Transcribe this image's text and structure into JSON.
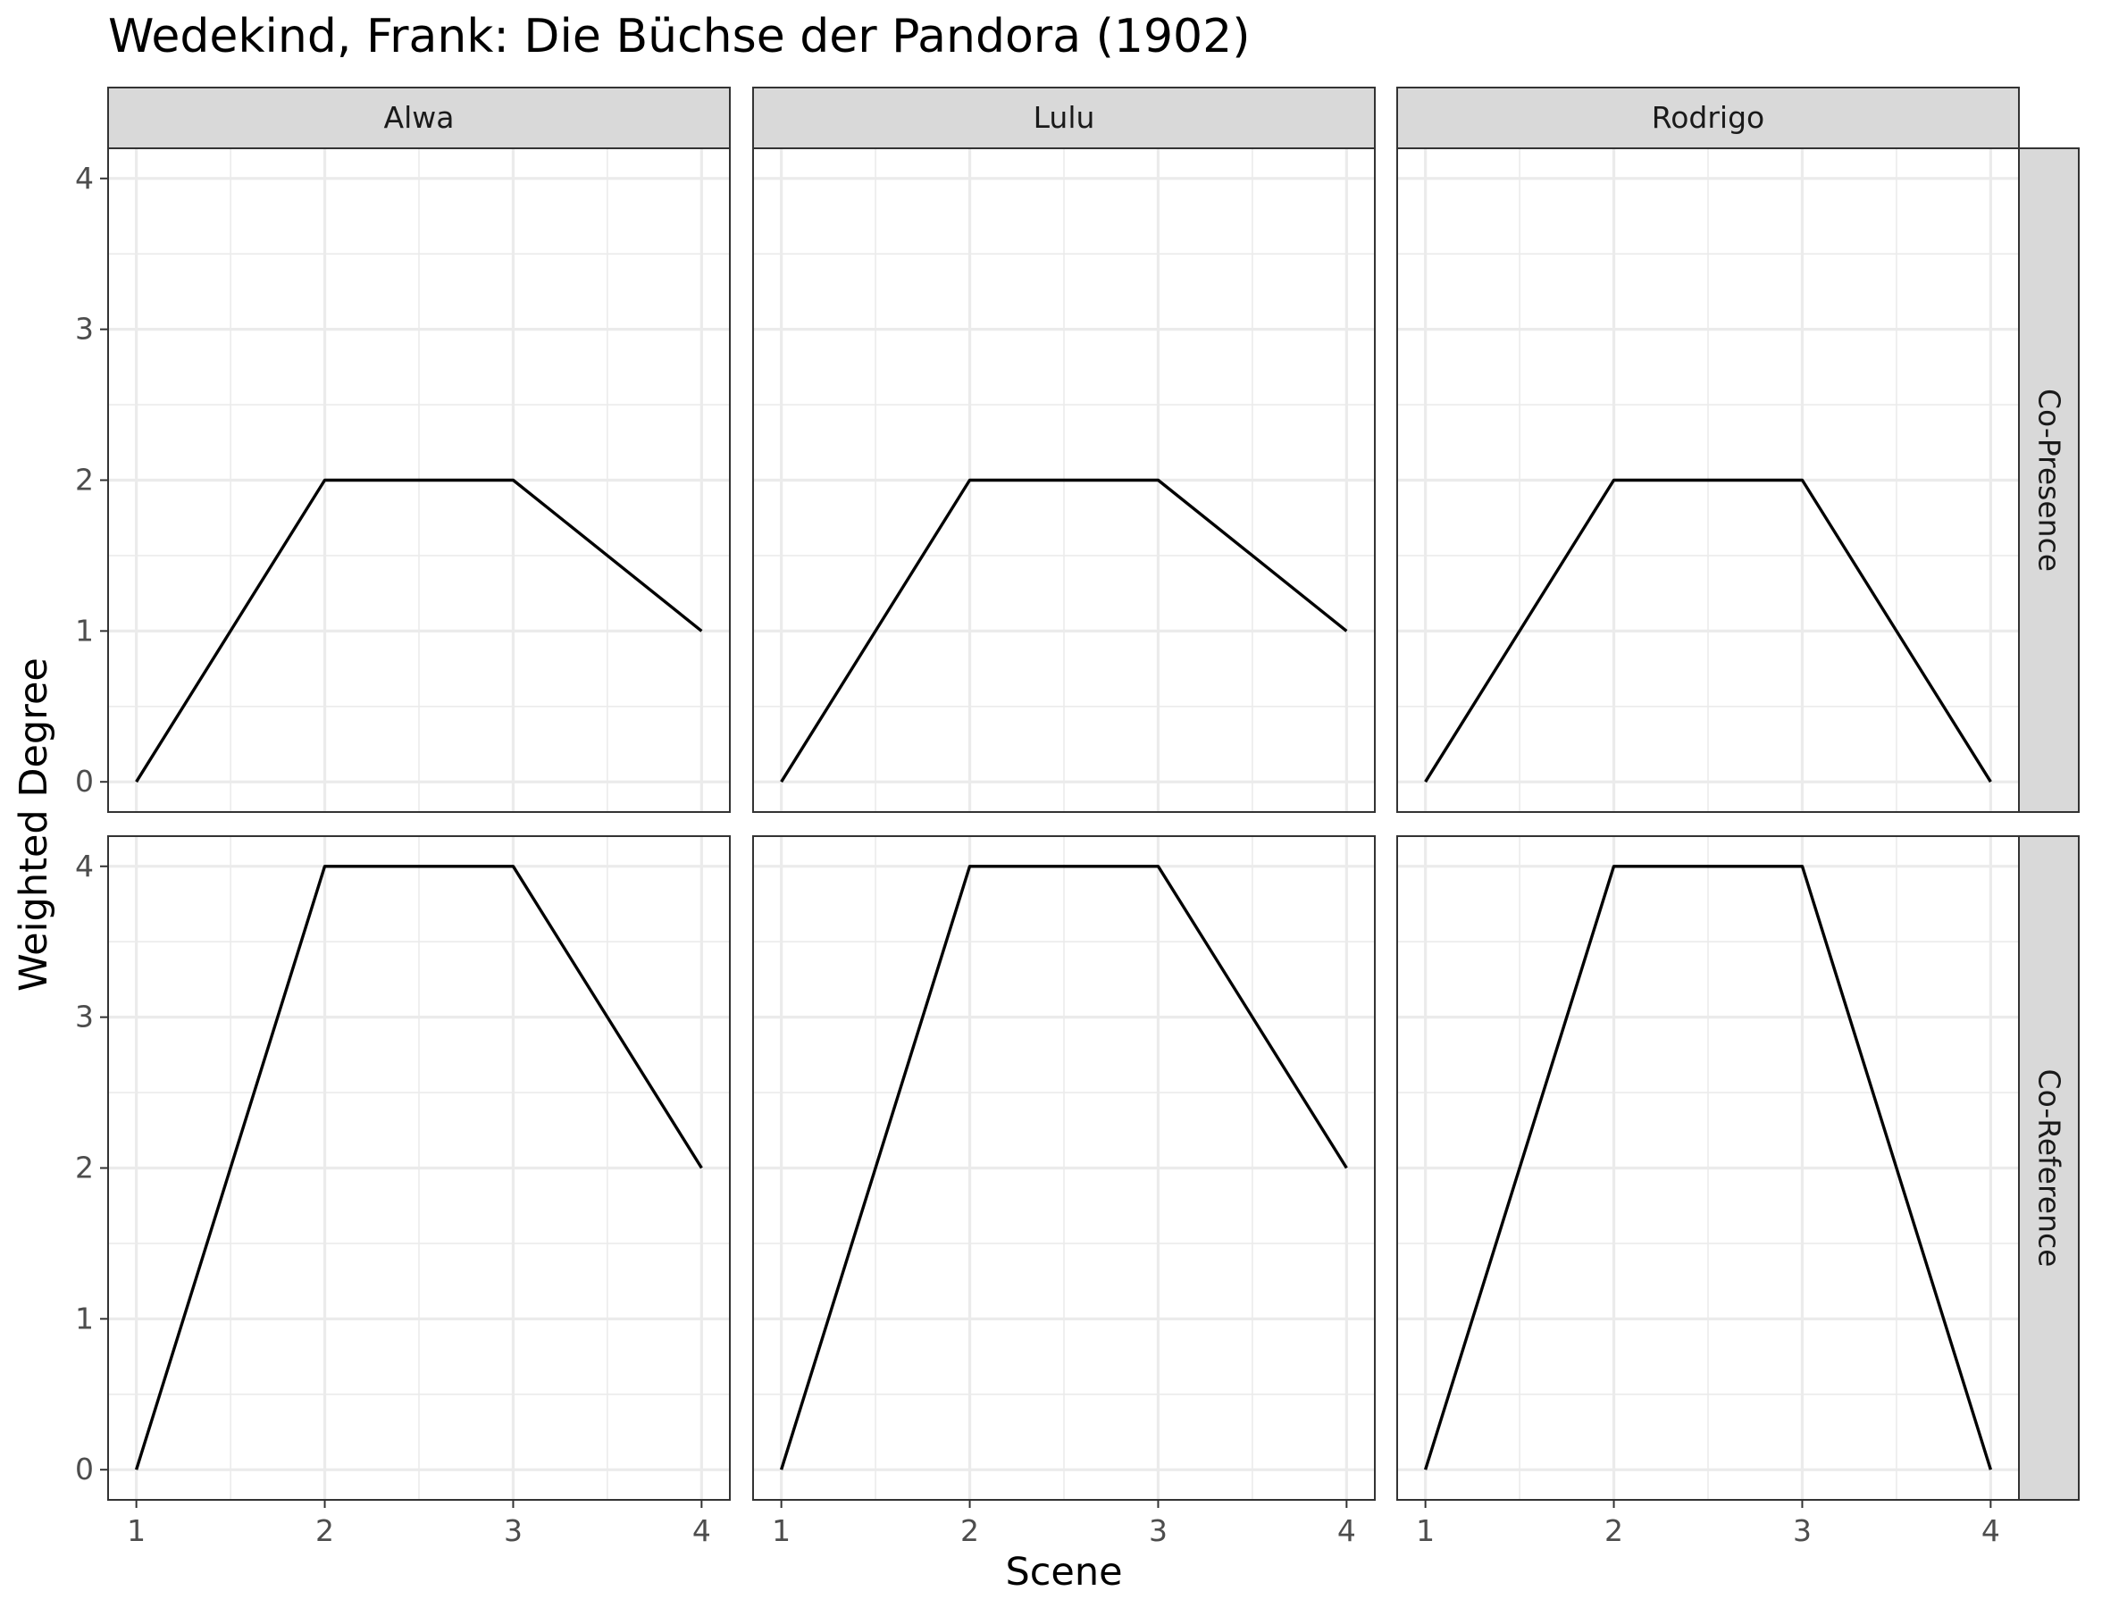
{
  "chart_data": {
    "type": "line",
    "title": "Wedekind, Frank: Die Büchse der Pandora (1902)",
    "xlabel": "Scene",
    "ylabel": "Weighted Degree",
    "columns": [
      "Alwa",
      "Lulu",
      "Rodrigo"
    ],
    "rows": [
      "Co-Presence",
      "Co-Reference"
    ],
    "x": [
      1,
      2,
      3,
      4
    ],
    "x_ticks": [
      "1",
      "2",
      "3",
      "4"
    ],
    "xlim": [
      0.85,
      4.15
    ],
    "ylim": [
      -0.2,
      4.2
    ],
    "y_ticks": [
      "0",
      "1",
      "2",
      "3",
      "4"
    ],
    "grid": true,
    "line_color": "#000000",
    "panels": [
      {
        "column": "Alwa",
        "row": "Co-Presence",
        "values": [
          0,
          2,
          2,
          1
        ]
      },
      {
        "column": "Lulu",
        "row": "Co-Presence",
        "values": [
          0,
          2,
          2,
          1
        ]
      },
      {
        "column": "Rodrigo",
        "row": "Co-Presence",
        "values": [
          0,
          2,
          2,
          0
        ]
      },
      {
        "column": "Alwa",
        "row": "Co-Reference",
        "values": [
          0,
          4,
          4,
          2
        ]
      },
      {
        "column": "Lulu",
        "row": "Co-Reference",
        "values": [
          0,
          4,
          4,
          2
        ]
      },
      {
        "column": "Rodrigo",
        "row": "Co-Reference",
        "values": [
          0,
          4,
          4,
          0
        ]
      }
    ]
  }
}
